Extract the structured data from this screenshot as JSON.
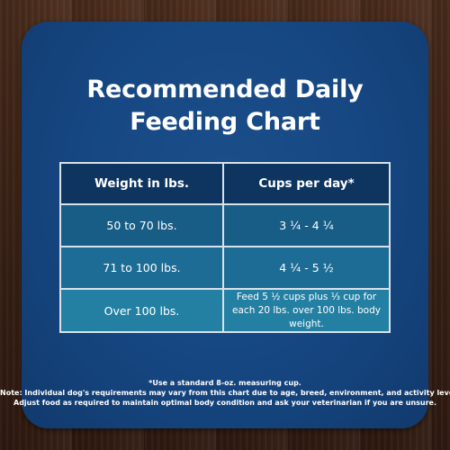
{
  "title": {
    "line1": "Recommended Daily",
    "line2": "Feeding Chart"
  },
  "table": {
    "headers": [
      "Weight in lbs.",
      "Cups per day*"
    ],
    "rows": [
      [
        "50 to 70 lbs.",
        "3 ¼ - 4 ¼"
      ],
      [
        "71 to 100 lbs.",
        "4 ¼ - 5 ½"
      ],
      [
        "Over 100 lbs.",
        "Feed 5 ½ cups plus ⅓ cup for each 20 lbs. over 100 lbs. body weight."
      ]
    ]
  },
  "footnotes": {
    "measuring": "*Use a standard 8-oz. measuring cup.",
    "note_line1": "Note: Individual dog's requirements may vary from this chart due to age, breed, environment, and activity level.",
    "note_line2": "Adjust food as required to maintain optimal body condition and ask your veterinarian if you are unsure."
  },
  "colors": {
    "card": "#164782",
    "header_row": "#0e3460",
    "row1": "#185d86",
    "row2": "#1d6c95",
    "row3": "#2480a3",
    "border": "#d9e2ea",
    "background_wood": "#3b2216"
  }
}
